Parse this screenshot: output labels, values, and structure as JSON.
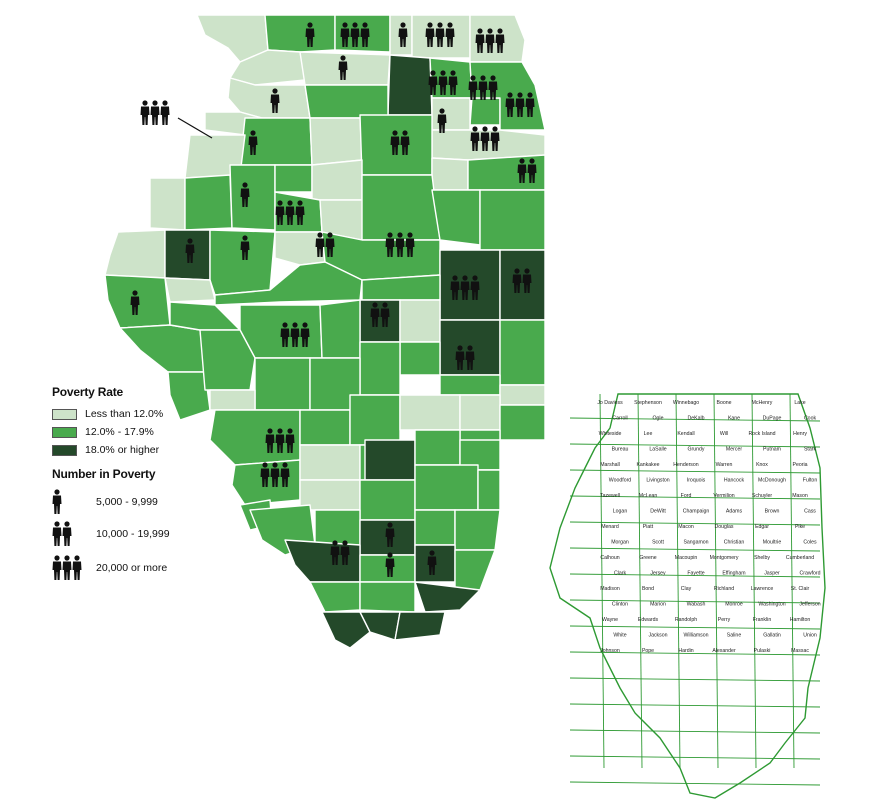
{
  "colors": {
    "low": "#cde3c9",
    "mid": "#49aa4d",
    "high": "#24492a",
    "county_border": "#ffffff",
    "outline_map": "#2e9a33",
    "icon": "#111111"
  },
  "legend": {
    "rate_title": "Poverty Rate",
    "rate_items": [
      {
        "label": "Less than 12.0%",
        "color": "#cde3c9"
      },
      {
        "label": "12.0% - 17.9%",
        "color": "#49aa4d"
      },
      {
        "label": "18.0% or higher",
        "color": "#24492a"
      }
    ],
    "count_title": "Number in Poverty",
    "count_items": [
      {
        "label": "5,000 - 9,999",
        "icons": 1
      },
      {
        "label": "10,000 - 19,999",
        "icons": 2
      },
      {
        "label": "20,000 or more",
        "icons": 3
      }
    ]
  },
  "reference_map": {
    "counties": [
      "Jo Daviess",
      "Stephenson",
      "Winnebago",
      "Boone",
      "McHenry",
      "Lake",
      "Carroll",
      "Ogle",
      "DeKalb",
      "Kane",
      "DuPage",
      "Cook",
      "Whiteside",
      "Lee",
      "Kendall",
      "Will",
      "Rock Island",
      "Henry",
      "Bureau",
      "LaSalle",
      "Grundy",
      "Mercer",
      "Putnam",
      "Stark",
      "Marshall",
      "Kankakee",
      "Henderson",
      "Warren",
      "Knox",
      "Peoria",
      "Woodford",
      "Livingston",
      "Iroquois",
      "Hancock",
      "McDonough",
      "Fulton",
      "Tazewell",
      "McLean",
      "Ford",
      "Vermilion",
      "Schuyler",
      "Mason",
      "Logan",
      "DeWitt",
      "Champaign",
      "Adams",
      "Brown",
      "Cass",
      "Menard",
      "Piatt",
      "Macon",
      "Douglas",
      "Edgar",
      "Pike",
      "Morgan",
      "Scott",
      "Sangamon",
      "Christian",
      "Moultrie",
      "Coles",
      "Calhoun",
      "Greene",
      "Macoupin",
      "Montgomery",
      "Shelby",
      "Cumberland",
      "Clark",
      "Jersey",
      "Fayette",
      "Effingham",
      "Jasper",
      "Crawford",
      "Madison",
      "Bond",
      "Clay",
      "Richland",
      "Lawrence",
      "St. Clair",
      "Clinton",
      "Marion",
      "Wabash",
      "Monroe",
      "Washington",
      "Jefferson",
      "Wayne",
      "Edwards",
      "Randolph",
      "Perry",
      "Franklin",
      "Hamilton",
      "White",
      "Jackson",
      "Williamson",
      "Saline",
      "Gallatin",
      "Union",
      "Johnson",
      "Pope",
      "Hardin",
      "Alexander",
      "Pulaski",
      "Massac"
    ]
  }
}
